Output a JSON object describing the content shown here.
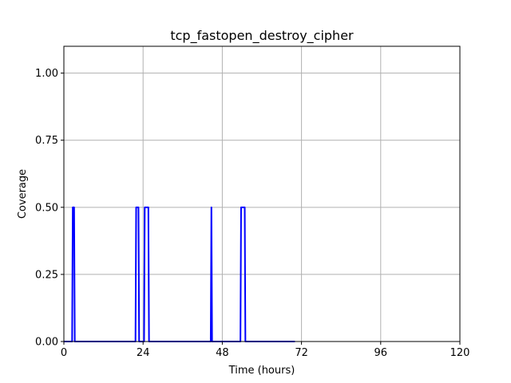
{
  "chart_data": {
    "type": "line",
    "title": "tcp_fastopen_destroy_cipher",
    "xlabel": "Time (hours)",
    "ylabel": "Coverage",
    "xlim": [
      0,
      120
    ],
    "ylim": [
      0,
      1.1
    ],
    "xticks": [
      0,
      24,
      48,
      72,
      96,
      120
    ],
    "xtick_labels": [
      "0",
      "24",
      "48",
      "72",
      "96",
      "120"
    ],
    "yticks": [
      0,
      0.25,
      0.5,
      0.75,
      1.0
    ],
    "ytick_labels": [
      "0.00",
      "0.25",
      "0.50",
      "0.75",
      "1.00"
    ],
    "grid": true,
    "series": [
      {
        "color": "#0000ff",
        "x": [
          0,
          2.5,
          2.7,
          3.1,
          3.3,
          21.7,
          21.9,
          22.6,
          22.8,
          24.3,
          24.5,
          25.6,
          25.8,
          44.5,
          44.7,
          44.9,
          53.5,
          53.7,
          54.8,
          55.0,
          70
        ],
        "y": [
          0,
          0,
          0.5,
          0.5,
          0,
          0,
          0.5,
          0.5,
          0,
          0,
          0.5,
          0.5,
          0,
          0,
          0.5,
          0,
          0,
          0.5,
          0.5,
          0,
          0
        ]
      }
    ]
  }
}
